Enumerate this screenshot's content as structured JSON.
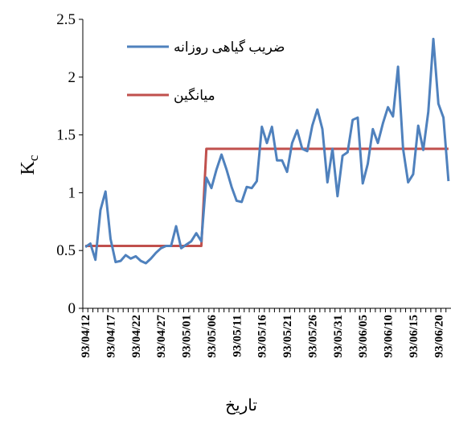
{
  "chart_data": {
    "type": "line",
    "y_label_main": "K",
    "y_label_sub": "c",
    "x_label": "تاریخ",
    "categories": [
      "93/04/12",
      null,
      null,
      null,
      null,
      "93/04/17",
      null,
      null,
      null,
      null,
      "93/04/22",
      null,
      null,
      null,
      null,
      "93/04/27",
      null,
      null,
      null,
      null,
      "93/05/01",
      null,
      null,
      null,
      null,
      "93/05/06",
      null,
      null,
      null,
      null,
      "93/05/11",
      null,
      null,
      null,
      null,
      "93/05/16",
      null,
      null,
      null,
      null,
      "93/05/21",
      null,
      null,
      null,
      null,
      "93/05/26",
      null,
      null,
      null,
      null,
      "93/05/31",
      null,
      null,
      null,
      null,
      "93/06/05",
      null,
      null,
      null,
      null,
      "93/06/10",
      null,
      null,
      null,
      null,
      "93/06/15",
      null,
      null,
      null,
      null,
      "93/06/20",
      null,
      null
    ],
    "series": [
      {
        "name": "ضریب گیاهی روزانه",
        "color": "#4f81bd",
        "values": [
          0.53,
          0.56,
          0.42,
          0.85,
          1.01,
          0.6,
          0.4,
          0.41,
          0.46,
          0.43,
          0.45,
          0.41,
          0.39,
          0.43,
          0.48,
          0.52,
          0.54,
          0.54,
          0.71,
          0.52,
          0.55,
          0.58,
          0.65,
          0.58,
          1.13,
          1.04,
          1.2,
          1.33,
          1.2,
          1.05,
          0.93,
          0.92,
          1.05,
          1.04,
          1.1,
          1.57,
          1.43,
          1.57,
          1.28,
          1.28,
          1.18,
          1.43,
          1.54,
          1.38,
          1.36,
          1.58,
          1.72,
          1.55,
          1.09,
          1.38,
          0.97,
          1.32,
          1.35,
          1.63,
          1.65,
          1.08,
          1.25,
          1.55,
          1.43,
          1.6,
          1.74,
          1.66,
          2.09,
          1.38,
          1.09,
          1.16,
          1.58,
          1.37,
          1.7,
          2.33,
          1.77,
          1.65,
          1.1
        ]
      },
      {
        "name": "میانگین",
        "color": "#c0504d",
        "values": [
          0.54,
          0.54,
          0.54,
          0.54,
          0.54,
          0.54,
          0.54,
          0.54,
          0.54,
          0.54,
          0.54,
          0.54,
          0.54,
          0.54,
          0.54,
          0.54,
          0.54,
          0.54,
          0.54,
          0.54,
          0.54,
          0.54,
          0.54,
          0.54,
          1.38,
          1.38,
          1.38,
          1.38,
          1.38,
          1.38,
          1.38,
          1.38,
          1.38,
          1.38,
          1.38,
          1.38,
          1.38,
          1.38,
          1.38,
          1.38,
          1.38,
          1.38,
          1.38,
          1.38,
          1.38,
          1.38,
          1.38,
          1.38,
          1.38,
          1.38,
          1.38,
          1.38,
          1.38,
          1.38,
          1.38,
          1.38,
          1.38,
          1.38,
          1.38,
          1.38,
          1.38,
          1.38,
          1.38,
          1.38,
          1.38,
          1.38,
          1.38,
          1.38,
          1.38,
          1.38,
          1.38,
          1.38,
          1.38
        ]
      }
    ],
    "ylim": [
      0,
      2.5
    ],
    "yticks": [
      0,
      0.5,
      1,
      1.5,
      2,
      2.5
    ],
    "grid": false
  }
}
